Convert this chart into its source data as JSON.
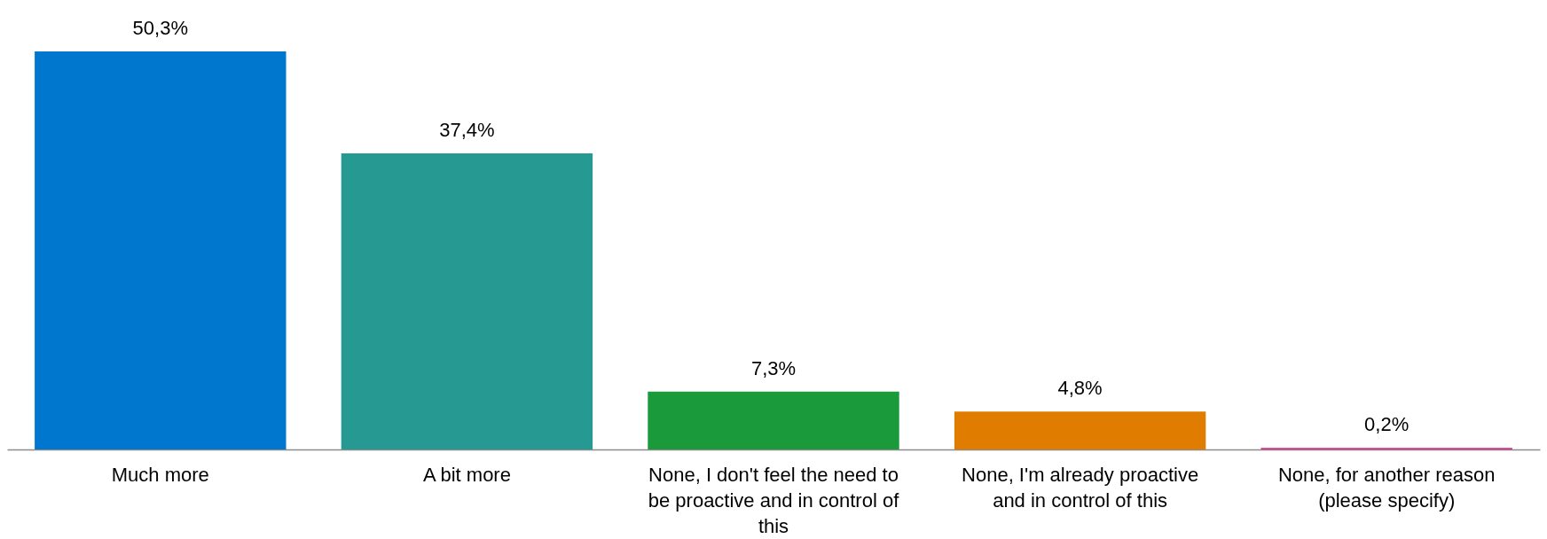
{
  "chart_data": {
    "type": "bar",
    "categories": [
      "Much more",
      "A bit more",
      "None, I don't feel the need to be proactive and in control of this",
      "None, I'm already proactive and in control of this",
      "None, for another reason (please specify)"
    ],
    "values": [
      50.3,
      37.4,
      7.3,
      4.8,
      0.2
    ],
    "value_labels": [
      "50,3%",
      "37,4%",
      "7,3%",
      "4,8%",
      "0,2%"
    ],
    "colors": [
      "#0077cf",
      "#269a92",
      "#1a9a3a",
      "#e07c00",
      "#e0288a"
    ]
  }
}
